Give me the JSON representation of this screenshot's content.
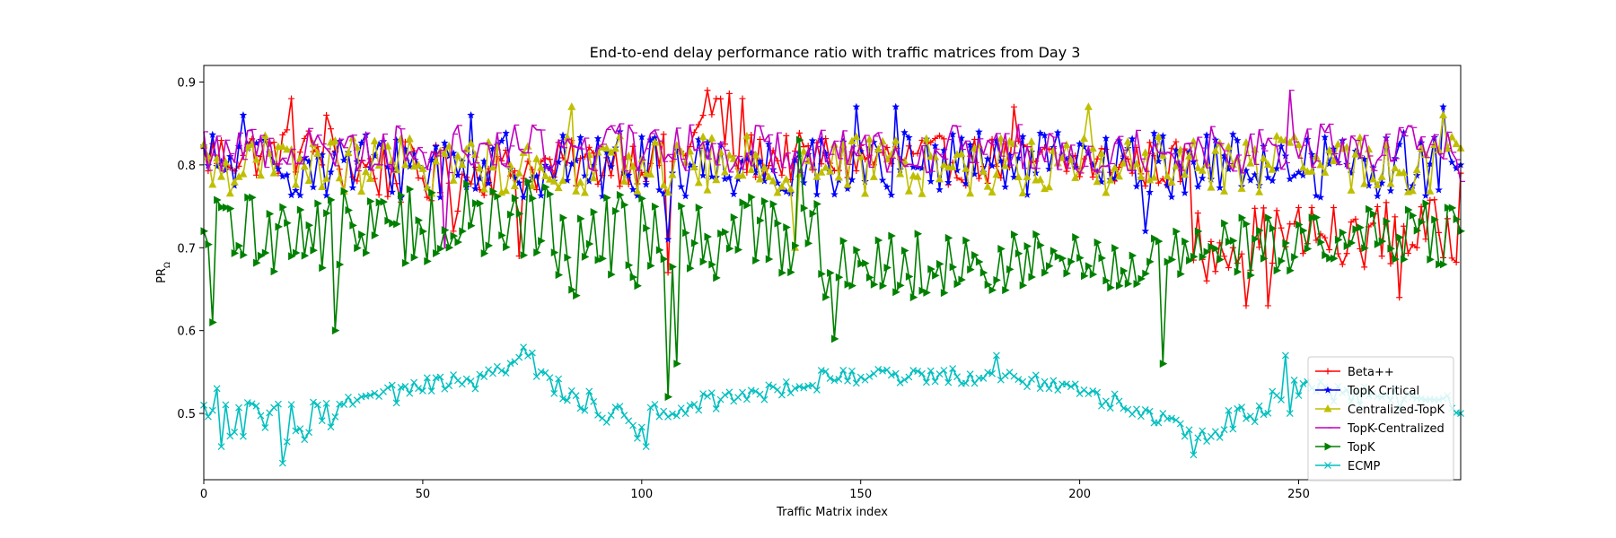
{
  "chart_data": {
    "type": "line",
    "title": "End-to-end delay performance ratio with traffic matrices from Day 3",
    "xlabel": "Traffic Matrix index",
    "ylabel_main": "PR",
    "ylabel_sub": "Ω",
    "xlim": [
      0,
      287
    ],
    "ylim": [
      0.42,
      0.92
    ],
    "xticks": [
      0,
      50,
      100,
      150,
      200,
      250
    ],
    "yticks": [
      0.5,
      0.6,
      0.7,
      0.8,
      0.9
    ],
    "xtick_labels": [
      "0",
      "50",
      "100",
      "150",
      "200",
      "250"
    ],
    "ytick_labels": [
      "0.5",
      "0.6",
      "0.7",
      "0.8",
      "0.9"
    ],
    "grid": false,
    "legend_position": "lower-right",
    "num_points": 288,
    "series": [
      {
        "name": "Beta++",
        "color": "#ff0000",
        "marker": "plus",
        "segments": [
          {
            "x": [
              0,
              30
            ],
            "base": [
              0.81,
              0.82
            ],
            "amp": 0.03
          },
          {
            "x": [
              30,
              60
            ],
            "base": [
              0.8,
              0.78
            ],
            "amp": 0.04
          },
          {
            "x": [
              60,
              110
            ],
            "base": [
              0.79,
              0.81
            ],
            "amp": 0.03
          },
          {
            "x": [
              110,
              120
            ],
            "base": [
              0.84,
              0.85
            ],
            "amp": 0.04
          },
          {
            "x": [
              120,
              225
            ],
            "base": [
              0.81,
              0.8
            ],
            "amp": 0.03
          },
          {
            "x": [
              225,
              287
            ],
            "base": [
              0.71,
              0.72
            ],
            "amp": 0.04
          }
        ],
        "points": [
          [
            0,
            0.82
          ],
          [
            20,
            0.88
          ],
          [
            28,
            0.86
          ],
          [
            57,
            0.72
          ],
          [
            72,
            0.69
          ],
          [
            106,
            0.67
          ],
          [
            115,
            0.89
          ],
          [
            117,
            0.88
          ],
          [
            123,
            0.88
          ],
          [
            185,
            0.87
          ],
          [
            229,
            0.66
          ],
          [
            235,
            0.7
          ],
          [
            238,
            0.63
          ],
          [
            243,
            0.63
          ],
          [
            260,
            0.68
          ],
          [
            273,
            0.64
          ],
          [
            287,
            0.79
          ]
        ]
      },
      {
        "name": "TopK Critical",
        "color": "#0000ff",
        "marker": "star",
        "segments": [
          {
            "x": [
              0,
              287
            ],
            "base": [
              0.8,
              0.8
            ],
            "amp": 0.04
          }
        ],
        "points": [
          [
            9,
            0.86
          ],
          [
            61,
            0.86
          ],
          [
            106,
            0.71
          ],
          [
            149,
            0.87
          ],
          [
            158,
            0.87
          ],
          [
            215,
            0.72
          ],
          [
            283,
            0.87
          ],
          [
            287,
            0.8
          ]
        ]
      },
      {
        "name": "Centralized-TopK",
        "color": "#bfbf00",
        "marker": "triangle-up",
        "segments": [
          {
            "x": [
              0,
              287
            ],
            "base": [
              0.8,
              0.8
            ],
            "amp": 0.035
          }
        ],
        "points": [
          [
            1,
            0.81
          ],
          [
            84,
            0.87
          ],
          [
            135,
            0.7
          ],
          [
            202,
            0.87
          ],
          [
            283,
            0.86
          ],
          [
            287,
            0.82
          ]
        ]
      },
      {
        "name": "TopK-Centralized",
        "color": "#bf00bf",
        "marker": "tick",
        "segments": [
          {
            "x": [
              0,
              287
            ],
            "base": [
              0.82,
              0.82
            ],
            "amp": 0.03
          }
        ],
        "points": [
          [
            0,
            0.84
          ],
          [
            55,
            0.7
          ],
          [
            248,
            0.89
          ],
          [
            287,
            0.78
          ]
        ]
      },
      {
        "name": "TopK",
        "color": "#008000",
        "marker": "triangle-right",
        "segments": [
          {
            "x": [
              0,
              40
            ],
            "base": [
              0.72,
              0.72
            ],
            "amp": 0.05
          },
          {
            "x": [
              40,
              80
            ],
            "base": [
              0.73,
              0.73
            ],
            "amp": 0.05
          },
          {
            "x": [
              80,
              140
            ],
            "base": [
              0.7,
              0.72
            ],
            "amp": 0.06
          },
          {
            "x": [
              140,
              230
            ],
            "base": [
              0.68,
              0.68
            ],
            "amp": 0.04
          },
          {
            "x": [
              230,
              287
            ],
            "base": [
              0.7,
              0.72
            ],
            "amp": 0.04
          }
        ],
        "points": [
          [
            0,
            0.72
          ],
          [
            2,
            0.61
          ],
          [
            30,
            0.6
          ],
          [
            106,
            0.52
          ],
          [
            108,
            0.56
          ],
          [
            136,
            0.83
          ],
          [
            144,
            0.59
          ],
          [
            219,
            0.56
          ],
          [
            287,
            0.72
          ]
        ]
      },
      {
        "name": "ECMP",
        "color": "#00bfbf",
        "marker": "x",
        "segments": [
          {
            "x": [
              0,
              30
            ],
            "base": [
              0.49,
              0.49
            ],
            "amp": 0.025
          },
          {
            "x": [
              30,
              60
            ],
            "base": [
              0.51,
              0.54
            ],
            "amp": 0.012
          },
          {
            "x": [
              60,
              75
            ],
            "base": [
              0.53,
              0.57
            ],
            "amp": 0.012
          },
          {
            "x": [
              75,
              100
            ],
            "base": [
              0.55,
              0.48
            ],
            "amp": 0.015
          },
          {
            "x": [
              100,
              140
            ],
            "base": [
              0.5,
              0.54
            ],
            "amp": 0.012
          },
          {
            "x": [
              140,
              180
            ],
            "base": [
              0.545,
              0.545
            ],
            "amp": 0.01
          },
          {
            "x": [
              180,
              200
            ],
            "base": [
              0.55,
              0.53
            ],
            "amp": 0.01
          },
          {
            "x": [
              200,
              230
            ],
            "base": [
              0.53,
              0.47
            ],
            "amp": 0.012
          },
          {
            "x": [
              230,
              250
            ],
            "base": [
              0.48,
              0.53
            ],
            "amp": 0.015
          },
          {
            "x": [
              250,
              287
            ],
            "base": [
              0.53,
              0.51
            ],
            "amp": 0.012
          }
        ],
        "points": [
          [
            0,
            0.51
          ],
          [
            3,
            0.53
          ],
          [
            4,
            0.46
          ],
          [
            18,
            0.44
          ],
          [
            73,
            0.58
          ],
          [
            101,
            0.46
          ],
          [
            181,
            0.57
          ],
          [
            226,
            0.45
          ],
          [
            247,
            0.57
          ],
          [
            248,
            0.5
          ],
          [
            287,
            0.5
          ]
        ]
      }
    ]
  }
}
